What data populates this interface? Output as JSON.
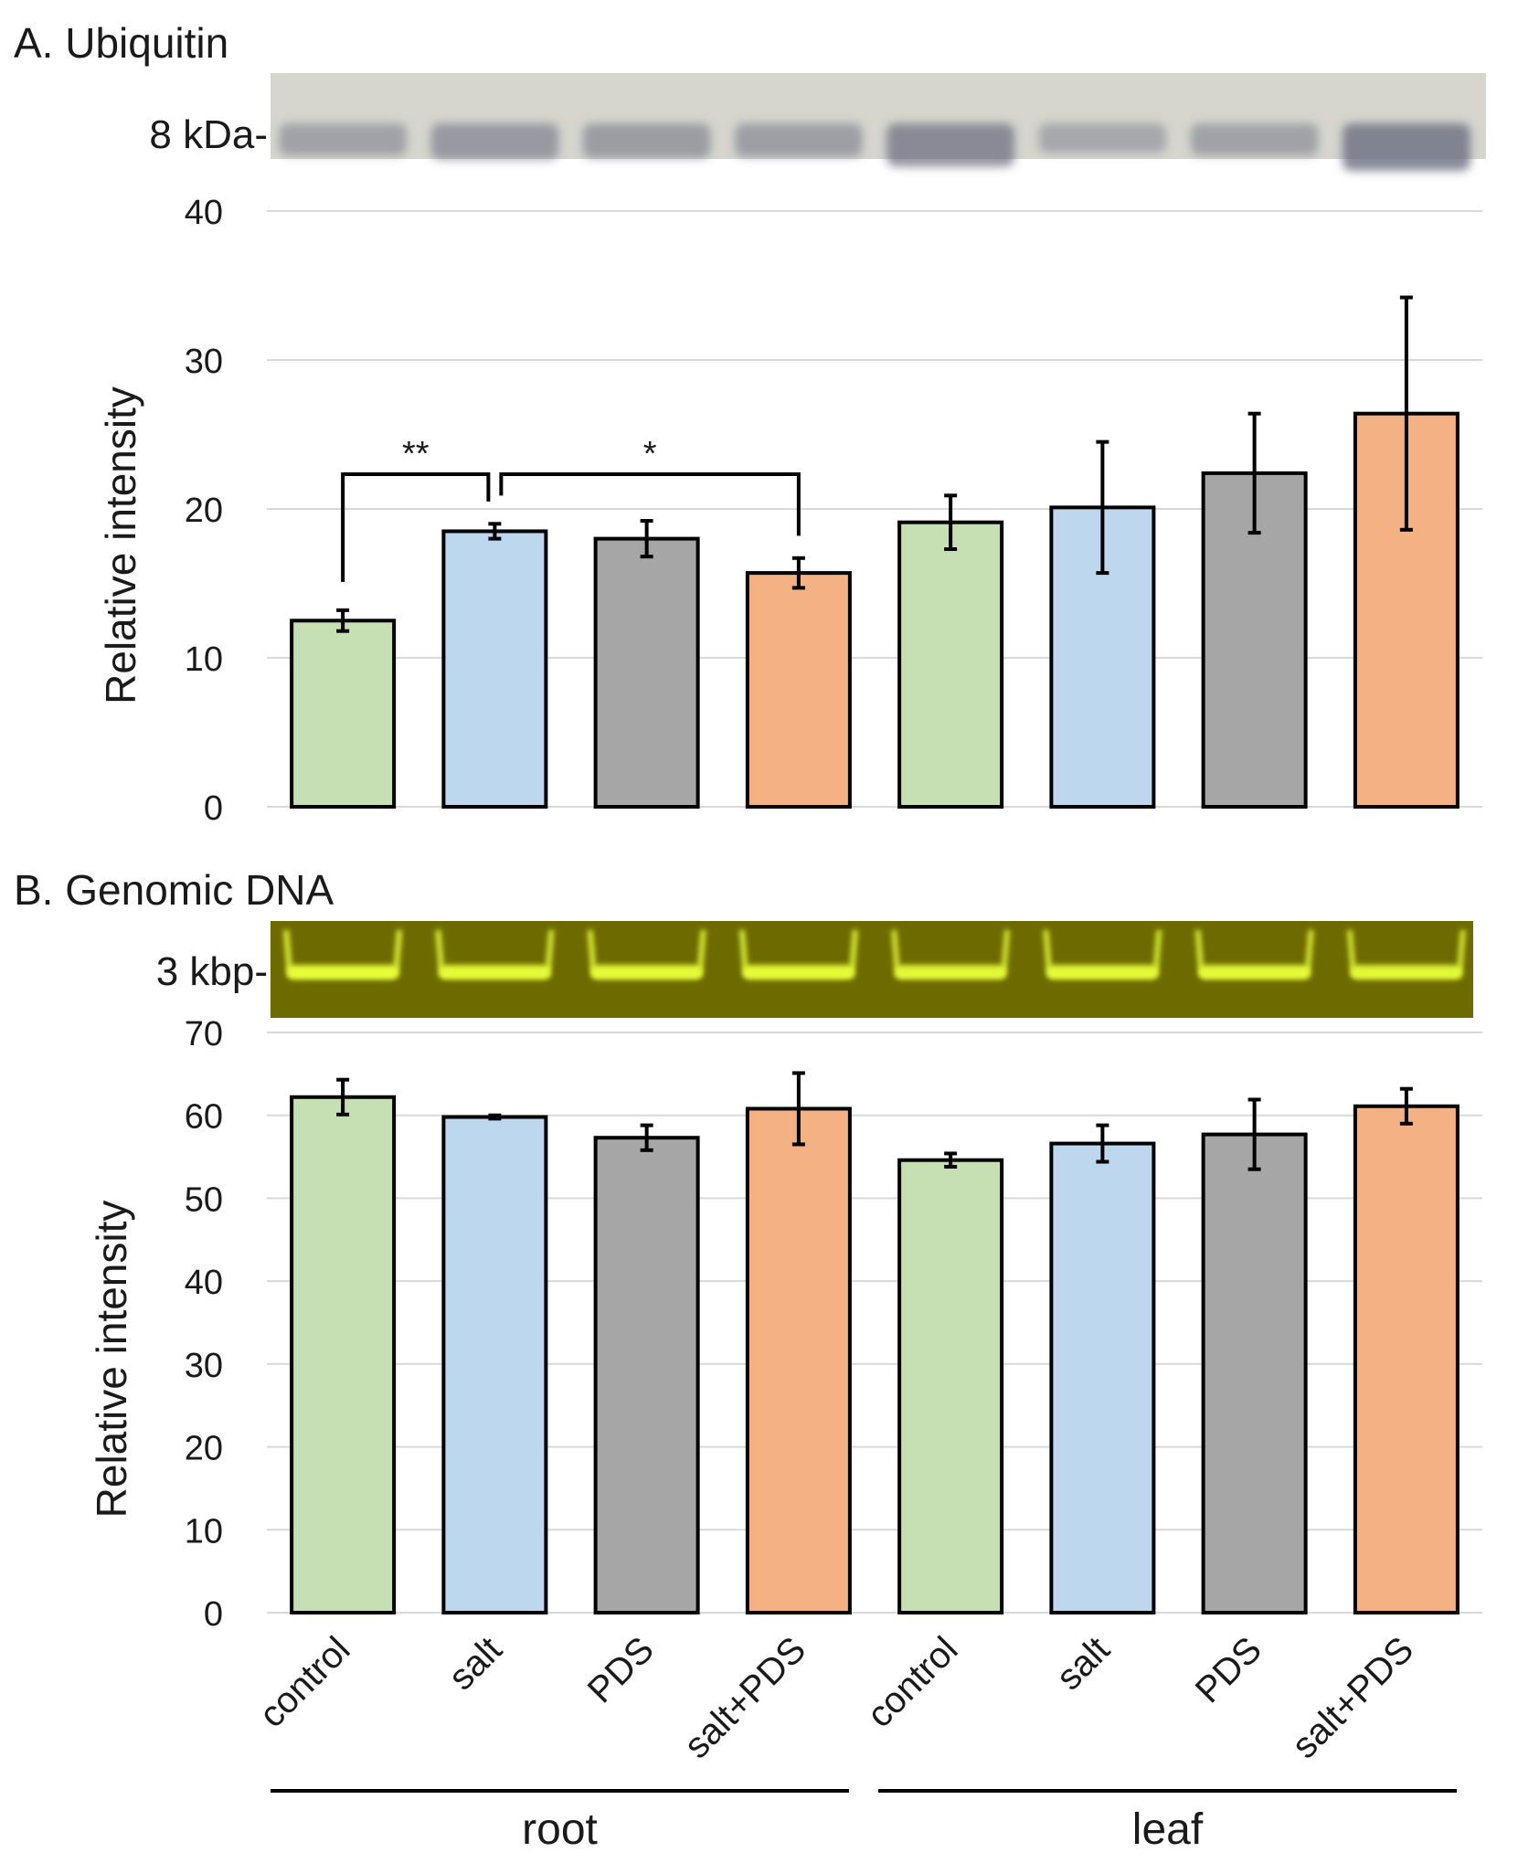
{
  "categories": [
    "control",
    "salt",
    "PDS",
    "salt+PDS",
    "control",
    "salt",
    "PDS",
    "salt+PDS"
  ],
  "groups": [
    {
      "label": "root",
      "start": 0,
      "end": 3
    },
    {
      "label": "leaf",
      "start": 4,
      "end": 7
    }
  ],
  "colors": {
    "control": "#c6e0b4",
    "salt": "#bdd7ee",
    "PDS": "#a6a6a6",
    "salt+PDS": "#f4b183",
    "edge": "#000000",
    "grid": "#d9d9d9",
    "blot_bg": "#d6d6cf",
    "blot_band": "#6b6e80",
    "gel_bg": "#6d6b00",
    "gel_band": "#e8ff3a"
  },
  "panels": {
    "a": {
      "title": "A. Ubiquitin",
      "marker_label": "8 kDa-",
      "band_strength": [
        0.45,
        0.6,
        0.55,
        0.5,
        0.85,
        0.35,
        0.45,
        1.0
      ]
    },
    "b": {
      "title": "B. Genomic DNA",
      "marker_label": "3 kbp-",
      "band_strength": [
        0.9,
        0.85,
        0.85,
        0.85,
        0.75,
        0.8,
        0.8,
        0.75
      ]
    }
  },
  "chart_data": [
    {
      "type": "bar",
      "title": "A. Ubiquitin",
      "ylabel": "Relative intensity",
      "ylim": [
        0,
        40
      ],
      "yticks": [
        0,
        10,
        20,
        30,
        40
      ],
      "categories": [
        "control",
        "salt",
        "PDS",
        "salt+PDS",
        "control",
        "salt",
        "PDS",
        "salt+PDS"
      ],
      "values": [
        12.5,
        18.5,
        18.0,
        15.7,
        19.1,
        20.1,
        22.4,
        26.4
      ],
      "errors": [
        0.7,
        0.5,
        1.2,
        1.0,
        1.8,
        4.4,
        4.0,
        7.8
      ],
      "significance": [
        {
          "from": 0,
          "to": 1,
          "label": "**"
        },
        {
          "from": 1,
          "to": 3,
          "label": "*"
        }
      ]
    },
    {
      "type": "bar",
      "title": "B. Genomic DNA",
      "ylabel": "Relative intensity",
      "ylim": [
        0,
        70
      ],
      "yticks": [
        0,
        10,
        20,
        30,
        40,
        50,
        60,
        70
      ],
      "categories": [
        "control",
        "salt",
        "PDS",
        "salt+PDS",
        "control",
        "salt",
        "PDS",
        "salt+PDS"
      ],
      "values": [
        62.2,
        59.8,
        57.3,
        60.8,
        54.6,
        56.6,
        57.7,
        61.1
      ],
      "errors": [
        2.1,
        0.2,
        1.5,
        4.3,
        0.8,
        2.2,
        4.2,
        2.1
      ],
      "significance": []
    }
  ]
}
